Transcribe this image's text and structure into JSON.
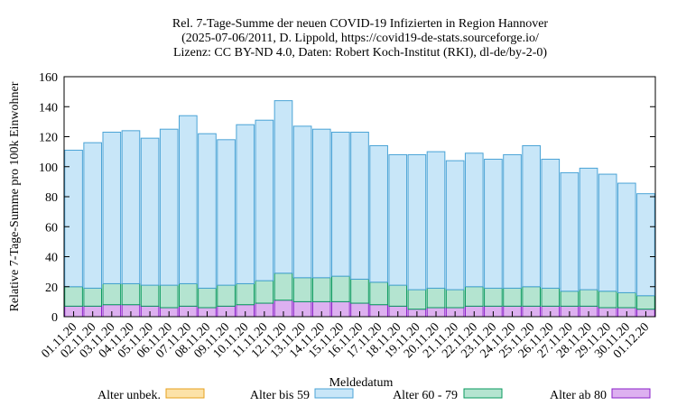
{
  "chart_data": {
    "type": "bar",
    "stacked": true,
    "title": [
      "Rel. 7-Tage-Summe der neuen COVID-19 Infizierten in Region Hannover",
      "(2025-07-06/2011, D. Lippold, https://covid19-de-stats.sourceforge.io/",
      "Lizenz: CC BY-ND 4.0, Daten: Robert Koch-Institut (RKI), dl-de/by-2-0)"
    ],
    "xlabel": "Meldedatum",
    "ylabel": "Relative 7-Tage-Summe pro 100k Einwohner",
    "ylim": [
      0,
      160
    ],
    "yticks": [
      0,
      20,
      40,
      60,
      80,
      100,
      120,
      140,
      160
    ],
    "grid": false,
    "legend_position": "bottom",
    "categories": [
      "01.11.20",
      "02.11.20",
      "03.11.20",
      "04.11.20",
      "05.11.20",
      "06.11.20",
      "07.11.20",
      "08.11.20",
      "09.11.20",
      "10.11.20",
      "11.11.20",
      "12.11.20",
      "13.11.20",
      "14.11.20",
      "15.11.20",
      "16.11.20",
      "17.11.20",
      "18.11.20",
      "19.11.20",
      "20.11.20",
      "21.11.20",
      "22.11.20",
      "23.11.20",
      "24.11.20",
      "25.11.20",
      "26.11.20",
      "27.11.20",
      "28.11.20",
      "29.11.20",
      "30.11.20",
      "01.12.20"
    ],
    "series": [
      {
        "name": "Alter unbek.",
        "fill": "#fce2a8",
        "stroke": "#e6a01e",
        "values": [
          0,
          0,
          0,
          0,
          0,
          0,
          0,
          0,
          0,
          0,
          0,
          0,
          0,
          0,
          0,
          0,
          0,
          0,
          0,
          0,
          0,
          0,
          0,
          0,
          0,
          0,
          0,
          0,
          0,
          0,
          0
        ]
      },
      {
        "name": "Alter ab 80",
        "fill": "#ddb0f0",
        "stroke": "#8a1fc8",
        "values": [
          7,
          7,
          8,
          8,
          7,
          6,
          7,
          6,
          7,
          8,
          9,
          11,
          10,
          10,
          10,
          9,
          8,
          7,
          5,
          6,
          6,
          7,
          7,
          7,
          7,
          7,
          7,
          7,
          6,
          6,
          5
        ]
      },
      {
        "name": "Alter 60 - 79",
        "fill": "#b4e4d0",
        "stroke": "#0a9a5e",
        "values": [
          13,
          12,
          14,
          14,
          14,
          15,
          15,
          13,
          14,
          14,
          15,
          18,
          16,
          16,
          17,
          16,
          15,
          14,
          13,
          13,
          12,
          13,
          12,
          12,
          13,
          12,
          10,
          11,
          11,
          10,
          9
        ]
      },
      {
        "name": "Alter bis 59",
        "fill": "#c8e6f8",
        "stroke": "#4aa3d6",
        "values": [
          91,
          97,
          101,
          102,
          98,
          104,
          112,
          103,
          97,
          106,
          107,
          115,
          101,
          99,
          96,
          98,
          91,
          87,
          90,
          91,
          86,
          89,
          86,
          89,
          94,
          86,
          79,
          81,
          78,
          73,
          68
        ]
      }
    ],
    "legend_order": [
      "Alter unbek.",
      "Alter bis 59",
      "Alter 60 - 79",
      "Alter ab 80"
    ]
  }
}
